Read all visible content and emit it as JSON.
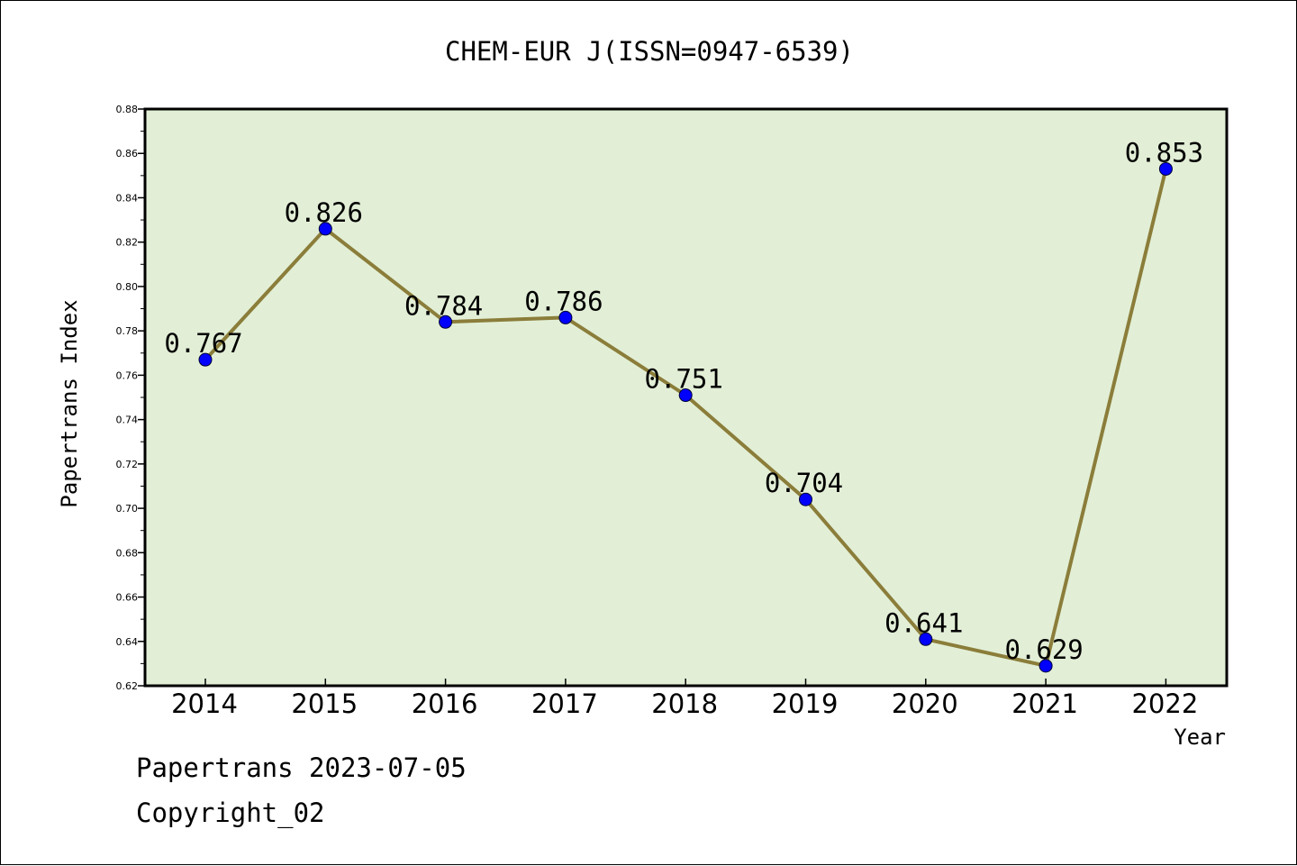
{
  "chart_data": {
    "type": "line",
    "title": "CHEM-EUR J(ISSN=0947-6539)",
    "xlabel": "Year",
    "ylabel": "Papertrans Index",
    "categories": [
      "2014",
      "2015",
      "2016",
      "2017",
      "2018",
      "2019",
      "2020",
      "2021",
      "2022"
    ],
    "series": [
      {
        "values": [
          0.767,
          0.826,
          0.784,
          0.786,
          0.751,
          0.704,
          0.641,
          0.629,
          0.853
        ],
        "data_labels": [
          "0.767",
          "0.826",
          "0.784",
          "0.786",
          "0.751",
          "0.704",
          "0.641",
          "0.629",
          "0.853"
        ]
      }
    ],
    "ylim": [
      0.62,
      0.88
    ],
    "yticks": [
      "0.62",
      "0.64",
      "0.66",
      "0.68",
      "0.70",
      "0.72",
      "0.74",
      "0.76",
      "0.78",
      "0.80",
      "0.82",
      "0.84",
      "0.86",
      "0.88"
    ],
    "grid": false,
    "legend": "none",
    "colors": {
      "plot_background": "#e2efd6",
      "line": "#8b7d3a",
      "marker": "#0000ff",
      "axes": "#000000"
    }
  },
  "footer": {
    "line1": "Papertrans 2023-07-05",
    "line2": "Copyright_02"
  }
}
